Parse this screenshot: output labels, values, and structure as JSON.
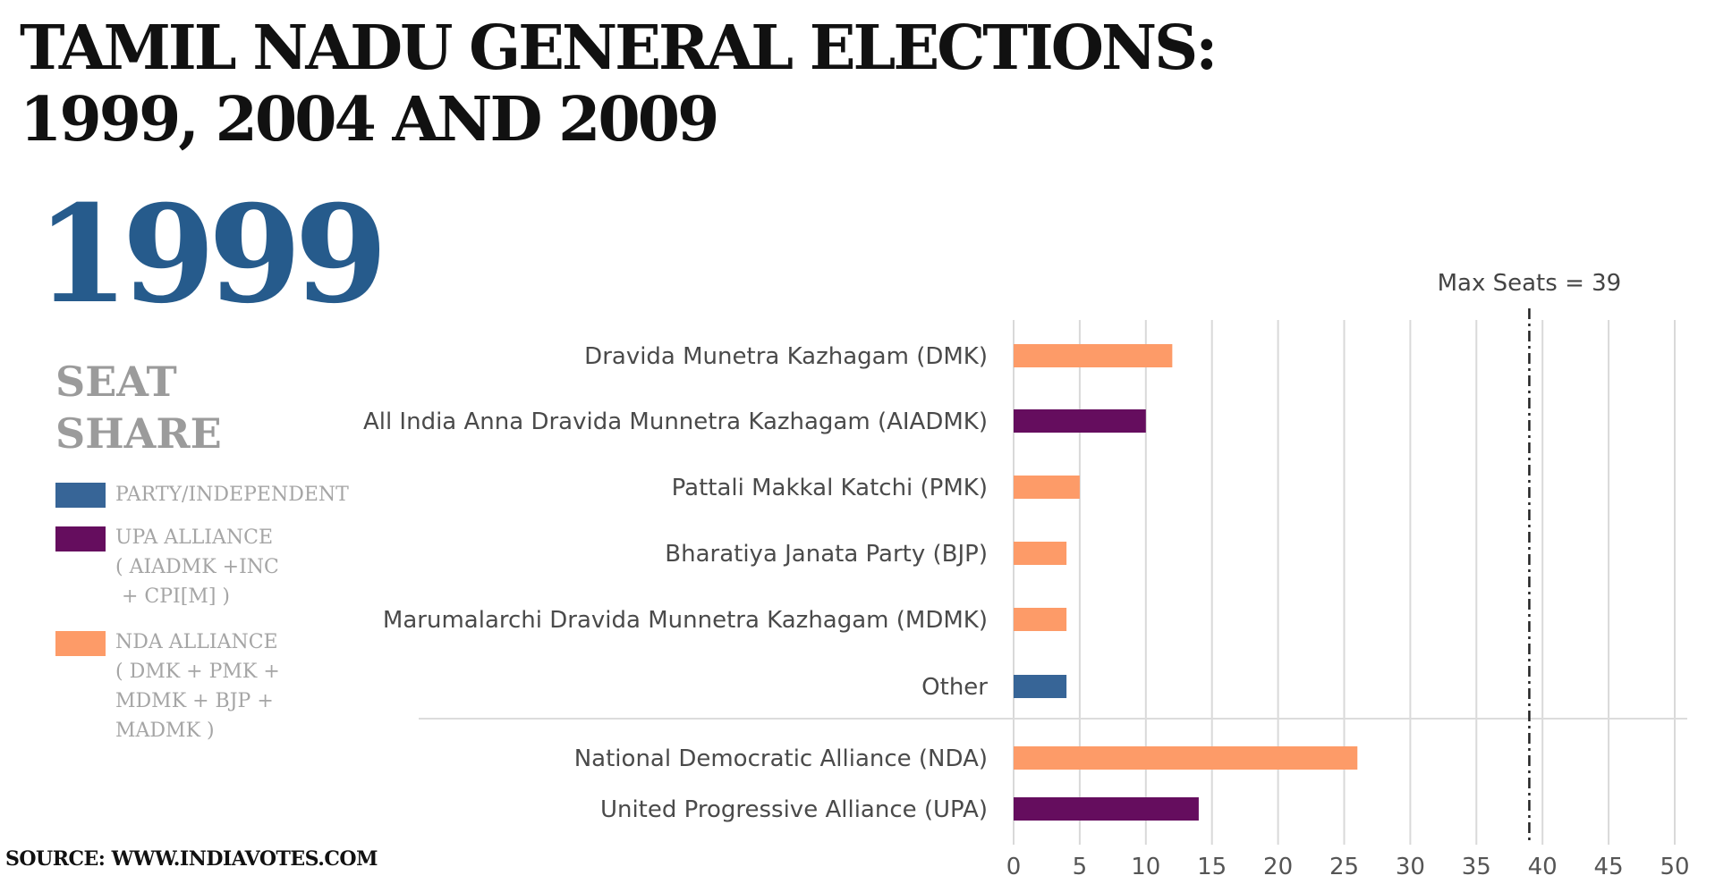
{
  "title_line1": "TAMIL NADU GENERAL ELECTIONS:",
  "title_line2": "1999, 2004 AND 2009",
  "year": "1999",
  "seat_share_line1": "SEAT",
  "seat_share_line2": "SHARE",
  "legend": [
    {
      "lines": [
        "PARTY/INDEPENDENT"
      ],
      "color": "#376597"
    },
    {
      "lines": [
        "UPA ALLIANCE",
        "( AIADMK +INC",
        " + CPI[M] )"
      ],
      "color": "#650d5e"
    },
    {
      "lines": [
        "NDA ALLIANCE",
        "( DMK + PMK +",
        "MDMK + BJP +",
        "MADMK )"
      ],
      "color": "#fd9b68"
    }
  ],
  "source": "SOURCE: WWW.INDIAVOTES.COM",
  "chart_data": {
    "type": "bar",
    "orientation": "horizontal",
    "categories": [
      "Dravida Munetra Kazhagam (DMK)",
      "All India Anna Dravida Munnetra Kazhagam (AIADMK)",
      "Pattali Makkal Katchi (PMK)",
      "Bharatiya Janata Party (BJP)",
      "Marumalarchi Dravida Munnetra Kazhagam (MDMK)",
      "Other",
      "National Democratic Alliance (NDA)",
      "United Progressive Alliance (UPA)"
    ],
    "values": [
      12,
      10,
      5,
      4,
      4,
      4,
      26,
      14
    ],
    "colors": [
      "#fd9b68",
      "#650d5e",
      "#fd9b68",
      "#fd9b68",
      "#fd9b68",
      "#376597",
      "#fd9b68",
      "#650d5e"
    ],
    "xlim": [
      0,
      50
    ],
    "xticks": [
      0,
      5,
      10,
      15,
      20,
      25,
      30,
      35,
      40,
      45,
      50
    ],
    "grid": "vertical",
    "reference_line": {
      "value": 39,
      "label": "Max Seats = 39"
    }
  }
}
